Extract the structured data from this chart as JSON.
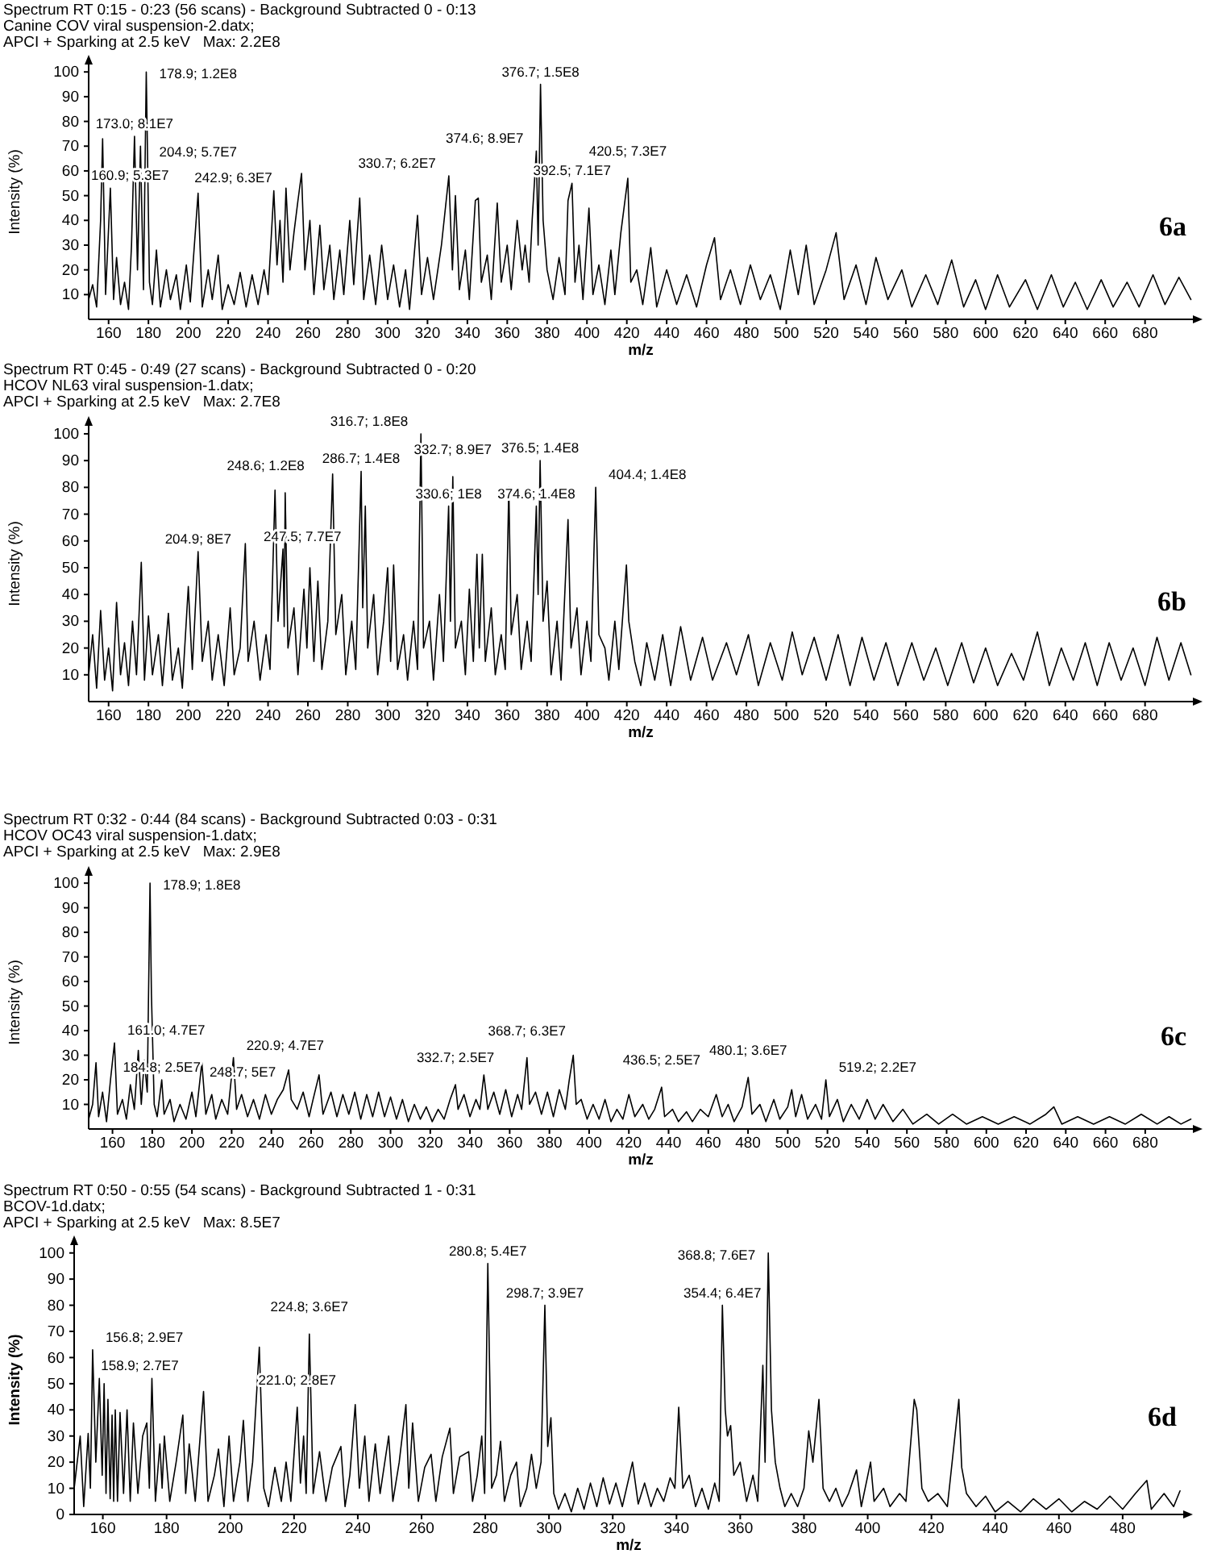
{
  "chart_data": [
    {
      "type": "line",
      "title": "Spectrum RT 0:15 - 0:23 (56 scans) - Background Subtracted 0 - 0:13",
      "subtitle": "Canine COV viral suspension-2.datx;\nAPCI + Sparking at 2.5 keV   Max: 2.2E8",
      "xlabel": "m/z",
      "ylabel": "Intensity (%)",
      "color": "#000000",
      "xlim": [
        150,
        704
      ],
      "xticks": [
        160,
        180,
        200,
        220,
        240,
        260,
        280,
        300,
        320,
        340,
        360,
        380,
        400,
        420,
        440,
        460,
        480,
        500,
        520,
        540,
        560,
        580,
        600,
        620,
        640,
        660,
        680
      ],
      "ylim": [
        0,
        103
      ],
      "yticks": [
        10,
        20,
        30,
        40,
        50,
        60,
        70,
        80,
        90,
        100
      ],
      "x": [
        150,
        152,
        154,
        156,
        157,
        158.5,
        160.9,
        162.5,
        164,
        166,
        168,
        170,
        171.5,
        173,
        174.5,
        176,
        177.5,
        178.9,
        180.5,
        182,
        184,
        186,
        189,
        191,
        194,
        196,
        199,
        201,
        204.9,
        207,
        210,
        212,
        215,
        217,
        220,
        223,
        226,
        229,
        232,
        235,
        238,
        240,
        242.9,
        244.5,
        246,
        247.5,
        249,
        251,
        253,
        255,
        256.8,
        258.5,
        261,
        263,
        266,
        268,
        271,
        273,
        276,
        278,
        281,
        283,
        286,
        288,
        291,
        294,
        297,
        300,
        303,
        306,
        309,
        311,
        315,
        317,
        320,
        323,
        327,
        330.7,
        332.5,
        334,
        336,
        339,
        341,
        344,
        345.5,
        347,
        350,
        352,
        355,
        357,
        360,
        362,
        365,
        367.5,
        369,
        371,
        372.5,
        374.6,
        375.5,
        376.7,
        378,
        380,
        383,
        386,
        389,
        390.5,
        392.5,
        394,
        396,
        398,
        401,
        403,
        406,
        409,
        412,
        414,
        417,
        420.5,
        422,
        425,
        428,
        432,
        435,
        440,
        445,
        450,
        455,
        460,
        464,
        467,
        472,
        477,
        482,
        487,
        492,
        497,
        502,
        506,
        510,
        514,
        520,
        525,
        529,
        535,
        540,
        545,
        551,
        558,
        563,
        570,
        576,
        583,
        589,
        595,
        600,
        606,
        612,
        620,
        626,
        633,
        639,
        645,
        651,
        658,
        664,
        671,
        677,
        684,
        690,
        697,
        703
      ],
      "values": [
        8,
        14,
        5,
        40,
        73,
        10,
        53,
        8,
        25,
        6,
        15,
        4,
        30,
        74,
        20,
        70,
        12,
        100,
        15,
        6,
        28,
        5,
        20,
        8,
        18,
        4,
        22,
        7,
        51,
        5,
        20,
        8,
        26,
        4,
        14,
        6,
        19,
        5,
        18,
        6,
        20,
        10,
        52,
        22,
        40,
        15,
        53,
        20,
        35,
        48,
        59,
        20,
        40,
        10,
        38,
        12,
        30,
        8,
        28,
        10,
        40,
        14,
        49,
        8,
        26,
        6,
        30,
        8,
        22,
        5,
        20,
        4,
        42,
        10,
        25,
        8,
        30,
        58,
        20,
        50,
        12,
        28,
        8,
        48,
        49,
        15,
        26,
        8,
        47,
        15,
        30,
        12,
        40,
        20,
        30,
        15,
        40,
        68,
        30,
        95,
        40,
        20,
        8,
        25,
        10,
        48,
        55,
        15,
        30,
        8,
        45,
        10,
        22,
        6,
        28,
        10,
        35,
        57,
        15,
        20,
        6,
        29,
        5,
        20,
        6,
        18,
        5,
        22,
        33,
        8,
        20,
        6,
        22,
        8,
        18,
        4,
        28,
        10,
        30,
        6,
        20,
        35,
        8,
        22,
        6,
        25,
        8,
        20,
        5,
        18,
        6,
        24,
        5,
        16,
        4,
        18,
        5,
        16,
        4,
        18,
        5,
        15,
        4,
        16,
        5,
        15,
        5,
        18,
        6,
        17,
        8
      ],
      "annotations": [
        {
          "text": "160.9; 5.3E7",
          "x": 160.9,
          "y": 53
        },
        {
          "text": "173.0; 8.1E7",
          "x": 173.0,
          "y": 74
        },
        {
          "text": "178.9; 1.2E8",
          "x": 178.9,
          "y": 100
        },
        {
          "text": "204.9; 5.7E7",
          "x": 204.9,
          "y": 51
        },
        {
          "text": "242.9; 6.3E7",
          "x": 242.9,
          "y": 52
        },
        {
          "text": "330.7; 6.2E7",
          "x": 330.7,
          "y": 58
        },
        {
          "text": "374.6; 8.9E7",
          "x": 374.6,
          "y": 68
        },
        {
          "text": "376.7; 1.5E8",
          "x": 376.7,
          "y": 95
        },
        {
          "text": "392.5; 7.1E7",
          "x": 392.5,
          "y": 55
        },
        {
          "text": "420.5; 7.3E7",
          "x": 420.5,
          "y": 57
        },
        "6a"
      ]
    },
    {
      "type": "line",
      "title": "Spectrum RT 0:45 - 0:49 (27 scans) - Background Subtracted 0 - 0:20",
      "subtitle": "HCOV NL63 viral suspension-1.datx;\nAPCI + Sparking at 2.5 keV   Max: 2.7E8",
      "xlabel": "m/z",
      "ylabel": "Intensity (%)",
      "color": "#000000",
      "xlim": [
        150,
        704
      ],
      "xticks": [
        160,
        180,
        200,
        220,
        240,
        260,
        280,
        300,
        320,
        340,
        360,
        380,
        400,
        420,
        440,
        460,
        480,
        500,
        520,
        540,
        560,
        580,
        600,
        620,
        640,
        660,
        680
      ],
      "ylim": [
        0,
        103
      ],
      "yticks": [
        10,
        20,
        30,
        40,
        50,
        60,
        70,
        80,
        90,
        100
      ],
      "x": [
        150,
        152,
        154,
        156,
        158,
        160,
        162,
        164,
        166,
        168,
        170,
        172,
        174,
        176.4,
        178,
        180,
        182,
        185,
        187,
        190,
        192,
        195,
        197,
        200,
        202,
        204.9,
        207,
        210,
        212,
        215,
        218,
        221,
        223,
        226,
        228.6,
        230,
        233,
        236,
        239,
        241,
        243.5,
        245,
        247.5,
        248.1,
        248.6,
        250,
        253,
        255,
        258,
        259.5,
        261,
        263,
        265,
        267,
        270,
        272.4,
        274,
        277,
        279,
        282,
        284,
        286.7,
        287.5,
        288.8,
        290,
        293,
        295,
        298,
        300,
        301.5,
        303,
        305,
        308,
        310,
        313,
        315,
        316.7,
        318,
        321,
        323,
        326,
        328,
        330.6,
        331.5,
        332.7,
        334,
        337,
        339,
        341,
        343,
        344.8,
        346,
        347.5,
        349,
        352,
        354,
        357,
        359,
        360.8,
        362,
        365,
        367,
        370,
        372,
        374.6,
        375.5,
        376.5,
        378,
        380,
        382,
        385,
        387,
        390.5,
        392,
        395,
        397,
        400,
        402,
        404.4,
        406,
        409,
        411,
        414,
        416,
        419.8,
        421,
        424,
        427,
        430,
        434,
        438,
        442,
        447,
        452,
        458,
        463,
        470,
        475,
        481,
        486,
        492,
        498,
        503,
        508,
        514,
        520,
        526,
        532,
        538,
        544,
        550,
        556,
        563,
        569,
        575,
        581,
        588,
        594,
        600,
        606,
        613,
        619,
        626,
        632,
        638,
        644,
        650,
        656,
        662,
        668,
        674,
        680,
        686,
        692,
        698,
        703
      ],
      "values": [
        10,
        25,
        5,
        34,
        8,
        20,
        4,
        37,
        10,
        22,
        6,
        30,
        10,
        52,
        8,
        32,
        10,
        25,
        6,
        33,
        8,
        20,
        5,
        43,
        12,
        56,
        15,
        30,
        8,
        25,
        6,
        35,
        10,
        20,
        59,
        15,
        30,
        8,
        25,
        12,
        79,
        30,
        57,
        28,
        78,
        20,
        35,
        10,
        42,
        20,
        50,
        15,
        45,
        12,
        30,
        85,
        25,
        40,
        10,
        30,
        12,
        86,
        35,
        73,
        20,
        40,
        10,
        30,
        50,
        15,
        51,
        12,
        25,
        8,
        30,
        12,
        100,
        20,
        30,
        8,
        40,
        15,
        73,
        30,
        84,
        20,
        30,
        10,
        42,
        15,
        55,
        20,
        55,
        15,
        35,
        10,
        25,
        12,
        80,
        25,
        40,
        12,
        30,
        15,
        73,
        40,
        90,
        30,
        45,
        10,
        30,
        8,
        68,
        20,
        35,
        10,
        30,
        15,
        80,
        25,
        20,
        8,
        30,
        12,
        51,
        30,
        15,
        6,
        22,
        8,
        25,
        6,
        28,
        8,
        24,
        8,
        22,
        10,
        25,
        6,
        22,
        8,
        26,
        10,
        24,
        8,
        25,
        6,
        24,
        8,
        22,
        6,
        22,
        8,
        20,
        6,
        22,
        7,
        20,
        6,
        18,
        8,
        26,
        6,
        20,
        8,
        22,
        6,
        22,
        8,
        20,
        6,
        24,
        8,
        22,
        10
      ],
      "annotations": [
        {
          "text": "204.9; 8E7",
          "x": 204.9,
          "y": 56
        },
        {
          "text": "247.5; 7.7E7",
          "x": 247.5,
          "y": 57
        },
        {
          "text": "248.6; 1.2E8",
          "x": 248.6,
          "y": 78
        },
        {
          "text": "286.7; 1.4E8",
          "x": 286.7,
          "y": 86
        },
        {
          "text": "316.7; 1.8E8",
          "x": 316.7,
          "y": 100
        },
        {
          "text": "330.6; 1E8",
          "x": 330.6,
          "y": 73
        },
        {
          "text": "332.7; 8.9E7",
          "x": 332.7,
          "y": 84
        },
        {
          "text": "374.6; 1.4E8",
          "x": 374.6,
          "y": 73
        },
        {
          "text": "376.5; 1.4E8",
          "x": 376.5,
          "y": 90
        },
        {
          "text": "404.4; 1.4E8",
          "x": 404.4,
          "y": 80
        },
        "6b"
      ]
    },
    {
      "type": "line",
      "title": "Spectrum RT 0:32 - 0:44 (84 scans) - Background Subtracted 0:03 - 0:31",
      "subtitle": "HCOV OC43 viral suspension-1.datx;\nAPCI + Sparking at 2.5 keV   Max: 2.9E8",
      "xlabel": "m/z",
      "ylabel": "Intensity (%)",
      "color": "#000000",
      "xlim": [
        148,
        704
      ],
      "xticks": [
        160,
        180,
        200,
        220,
        240,
        260,
        280,
        300,
        320,
        340,
        360,
        380,
        400,
        420,
        440,
        460,
        480,
        500,
        520,
        540,
        560,
        580,
        600,
        620,
        640,
        660,
        680
      ],
      "ylim": [
        0,
        103
      ],
      "yticks": [
        10,
        20,
        30,
        40,
        50,
        60,
        70,
        80,
        90,
        100
      ],
      "x": [
        148,
        150,
        151.7,
        153,
        155,
        157,
        159,
        161,
        162.5,
        165,
        167,
        169,
        171,
        173,
        174.5,
        176,
        177.5,
        178.9,
        179.6,
        181,
        182.5,
        184.8,
        186,
        189,
        191,
        194,
        197,
        200,
        202,
        205,
        207,
        210,
        212,
        215,
        218,
        220.9,
        222.5,
        225,
        228,
        231,
        234,
        237,
        240,
        243,
        246,
        248.7,
        250,
        253,
        256,
        259,
        261,
        264,
        266,
        270,
        273,
        276,
        279,
        282,
        285,
        288,
        291,
        294,
        297,
        300,
        303,
        306,
        309,
        312,
        315,
        318,
        321,
        324,
        327,
        330,
        332.7,
        334,
        337,
        340,
        343,
        345,
        347,
        349,
        352,
        355,
        358,
        361,
        364,
        366,
        368.7,
        370,
        373,
        376,
        379,
        382,
        385,
        388,
        390,
        392,
        393.5,
        396,
        399,
        402,
        405,
        408,
        411,
        414,
        417,
        420,
        423,
        427,
        430,
        433,
        436.5,
        438,
        442,
        445,
        449,
        452,
        456,
        460,
        464,
        467,
        470,
        473,
        477,
        480.1,
        482,
        486,
        489,
        493,
        496,
        500,
        502,
        504,
        507,
        510,
        514,
        517,
        519.2,
        521,
        525,
        528,
        532,
        536,
        540,
        544,
        548,
        553,
        558,
        563,
        570,
        576,
        583,
        590,
        598,
        606,
        614,
        622,
        630,
        634,
        638,
        646,
        654,
        662,
        670,
        678,
        686,
        692,
        698,
        703
      ],
      "values": [
        4,
        10,
        27,
        5,
        15,
        3,
        20,
        35,
        6,
        12,
        4,
        18,
        8,
        32,
        10,
        28,
        15,
        100,
        55,
        10,
        5,
        20,
        6,
        12,
        3,
        10,
        4,
        15,
        5,
        27,
        6,
        14,
        4,
        12,
        6,
        29,
        8,
        14,
        5,
        12,
        4,
        14,
        6,
        12,
        16,
        24,
        12,
        8,
        15,
        5,
        12,
        22,
        6,
        15,
        5,
        14,
        6,
        15,
        4,
        14,
        5,
        15,
        5,
        13,
        4,
        12,
        3,
        10,
        4,
        9,
        3,
        8,
        4,
        12,
        18,
        8,
        14,
        5,
        12,
        8,
        22,
        8,
        15,
        6,
        16,
        5,
        14,
        8,
        29,
        10,
        15,
        6,
        15,
        5,
        16,
        8,
        20,
        30,
        10,
        12,
        4,
        10,
        4,
        12,
        3,
        8,
        4,
        14,
        5,
        10,
        4,
        8,
        17,
        5,
        8,
        3,
        7,
        3,
        8,
        5,
        14,
        5,
        10,
        3,
        9,
        21,
        6,
        10,
        3,
        12,
        4,
        9,
        16,
        5,
        14,
        4,
        10,
        4,
        20,
        5,
        12,
        3,
        10,
        4,
        12,
        4,
        10,
        3,
        8,
        2,
        6,
        2,
        6,
        2,
        5,
        2,
        5,
        2,
        6,
        9,
        2,
        5,
        2,
        5,
        2,
        6,
        2,
        5,
        2,
        4
      ],
      "annotations": [
        {
          "text": "161.0; 4.7E7",
          "x": 161.0,
          "y": 35
        },
        {
          "text": "178.9; 1.8E8",
          "x": 178.9,
          "y": 100
        },
        {
          "text": "184.8; 2.5E7",
          "x": 184.8,
          "y": 20
        },
        {
          "text": "220.9; 4.7E7",
          "x": 220.9,
          "y": 29
        },
        {
          "text": "248.7; 5E7",
          "x": 248.7,
          "y": 24
        },
        {
          "text": "332.7; 2.5E7",
          "x": 332.7,
          "y": 18
        },
        {
          "text": "368.7; 6.3E7",
          "x": 368.7,
          "y": 29
        },
        {
          "text": "436.5; 2.5E7",
          "x": 436.5,
          "y": 17
        },
        {
          "text": "480.1; 3.6E7",
          "x": 480.1,
          "y": 21
        },
        {
          "text": "519.2; 2.2E7",
          "x": 519.2,
          "y": 20
        },
        "6c"
      ]
    },
    {
      "type": "line",
      "title": "Spectrum RT 0:50 - 0:55 (54 scans) - Background Subtracted 1 - 0:31",
      "subtitle": "BCOV-1d.datx;\nAPCI + Sparking at 2.5 keV   Max: 8.5E7",
      "xlabel": "m/z",
      "ylabel": "Intensity (%)",
      "color": "#000000",
      "xlim": [
        151,
        499
      ],
      "xticks": [
        160,
        180,
        200,
        220,
        240,
        260,
        280,
        300,
        320,
        340,
        360,
        380,
        400,
        420,
        440,
        460,
        480
      ],
      "ylim": [
        0,
        103
      ],
      "yticks": [
        0,
        10,
        20,
        30,
        40,
        50,
        60,
        70,
        80,
        90,
        100
      ],
      "x": [
        151,
        152.9,
        154,
        155.4,
        156.1,
        156.8,
        157.8,
        158.9,
        159.8,
        160.4,
        161,
        161.6,
        162.3,
        162.9,
        163.4,
        163.9,
        164.6,
        165.4,
        166.5,
        167.6,
        168.6,
        169.6,
        171,
        172.5,
        173.8,
        174.6,
        175.4,
        176.5,
        177.9,
        178.6,
        179.3,
        181,
        183,
        185.1,
        186,
        187.1,
        189,
        191.6,
        193,
        195,
        196.3,
        198,
        199.6,
        201,
        203,
        204.1,
        205.5,
        207,
        209.1,
        210.5,
        212,
        214,
        216,
        217.5,
        219,
        221.0,
        222,
        223,
        223.8,
        224.8,
        226,
        228,
        230,
        232,
        234.7,
        236,
        237.5,
        239.2,
        240.5,
        242.2,
        243.5,
        245.5,
        247,
        249.7,
        251,
        253,
        255.1,
        256,
        257.2,
        259,
        261,
        263,
        264.5,
        266.5,
        268.9,
        270,
        272,
        274.8,
        276,
        277.5,
        278.9,
        279.8,
        280.8,
        282,
        283.5,
        284.8,
        286,
        288,
        289.8,
        291,
        293,
        294.5,
        296,
        297.5,
        298.7,
        299.6,
        300.6,
        301.5,
        303,
        305,
        307,
        309,
        311,
        313,
        315,
        317,
        319,
        321,
        323,
        326.2,
        328,
        330,
        332,
        334,
        336,
        338,
        339.5,
        340.7,
        342,
        344,
        346,
        348,
        350,
        352,
        353.4,
        354.4,
        355.3,
        356,
        357,
        358,
        360,
        362,
        364,
        365.5,
        367.1,
        367.8,
        368.8,
        369.8,
        371,
        372.5,
        374,
        376,
        378,
        380,
        381.5,
        382.8,
        384.7,
        386,
        388,
        390,
        392,
        394,
        396.5,
        398,
        400.9,
        402,
        405,
        407,
        410,
        412,
        414.6,
        415.4,
        417,
        419,
        422,
        425,
        428.6,
        429.5,
        431,
        434,
        437,
        440,
        444,
        448,
        452,
        456,
        460,
        464,
        468,
        472,
        476,
        480,
        484,
        487.6,
        489,
        493,
        496,
        498
      ],
      "values": [
        10,
        30,
        3,
        31,
        10,
        63,
        20,
        52,
        15,
        50,
        8,
        44,
        6,
        38,
        5,
        40,
        5,
        39,
        8,
        40,
        5,
        35,
        8,
        30,
        35,
        10,
        52,
        5,
        27,
        10,
        30,
        5,
        20,
        38,
        8,
        27,
        5,
        47,
        5,
        15,
        25,
        3,
        30,
        5,
        20,
        36,
        5,
        20,
        64,
        10,
        3,
        18,
        5,
        20,
        5,
        41,
        12,
        30,
        8,
        69,
        8,
        24,
        5,
        18,
        26,
        3,
        15,
        42,
        10,
        30,
        5,
        27,
        8,
        30,
        5,
        20,
        42,
        10,
        35,
        5,
        18,
        23,
        5,
        22,
        33,
        8,
        22,
        24,
        5,
        15,
        30,
        8,
        96,
        10,
        15,
        28,
        5,
        15,
        20,
        3,
        10,
        23,
        10,
        20,
        80,
        26,
        37,
        8,
        2,
        8,
        1,
        10,
        2,
        12,
        3,
        14,
        4,
        12,
        3,
        20,
        4,
        12,
        3,
        10,
        5,
        14,
        10,
        41,
        10,
        15,
        3,
        10,
        2,
        12,
        5,
        80,
        40,
        30,
        34,
        15,
        20,
        5,
        15,
        5,
        57,
        20,
        100,
        40,
        20,
        10,
        3,
        8,
        3,
        10,
        32,
        20,
        44,
        10,
        5,
        10,
        3,
        8,
        17,
        3,
        20,
        5,
        10,
        3,
        8,
        5,
        44,
        40,
        10,
        5,
        8,
        3,
        44,
        18,
        8,
        3,
        7,
        1,
        5,
        1,
        6,
        2,
        6,
        1,
        5,
        2,
        7,
        2,
        8,
        13,
        2,
        8,
        3,
        9
      ],
      "annotations": [
        {
          "text": "156.8; 2.9E7",
          "x": 156.8,
          "y": 63
        },
        {
          "text": "158.9; 2.7E7",
          "x": 158.9,
          "y": 52
        },
        {
          "text": "221.0; 2.8E7",
          "x": 221.0,
          "y": 41
        },
        {
          "text": "224.8; 3.6E7",
          "x": 224.8,
          "y": 69
        },
        {
          "text": "280.8; 5.4E7",
          "x": 280.8,
          "y": 96
        },
        {
          "text": "298.7; 3.9E7",
          "x": 298.7,
          "y": 80
        },
        {
          "text": "354.4; 6.4E7",
          "x": 354.4,
          "y": 80
        },
        {
          "text": "368.8; 7.6E7",
          "x": 368.8,
          "y": 100
        },
        "6d"
      ]
    }
  ]
}
